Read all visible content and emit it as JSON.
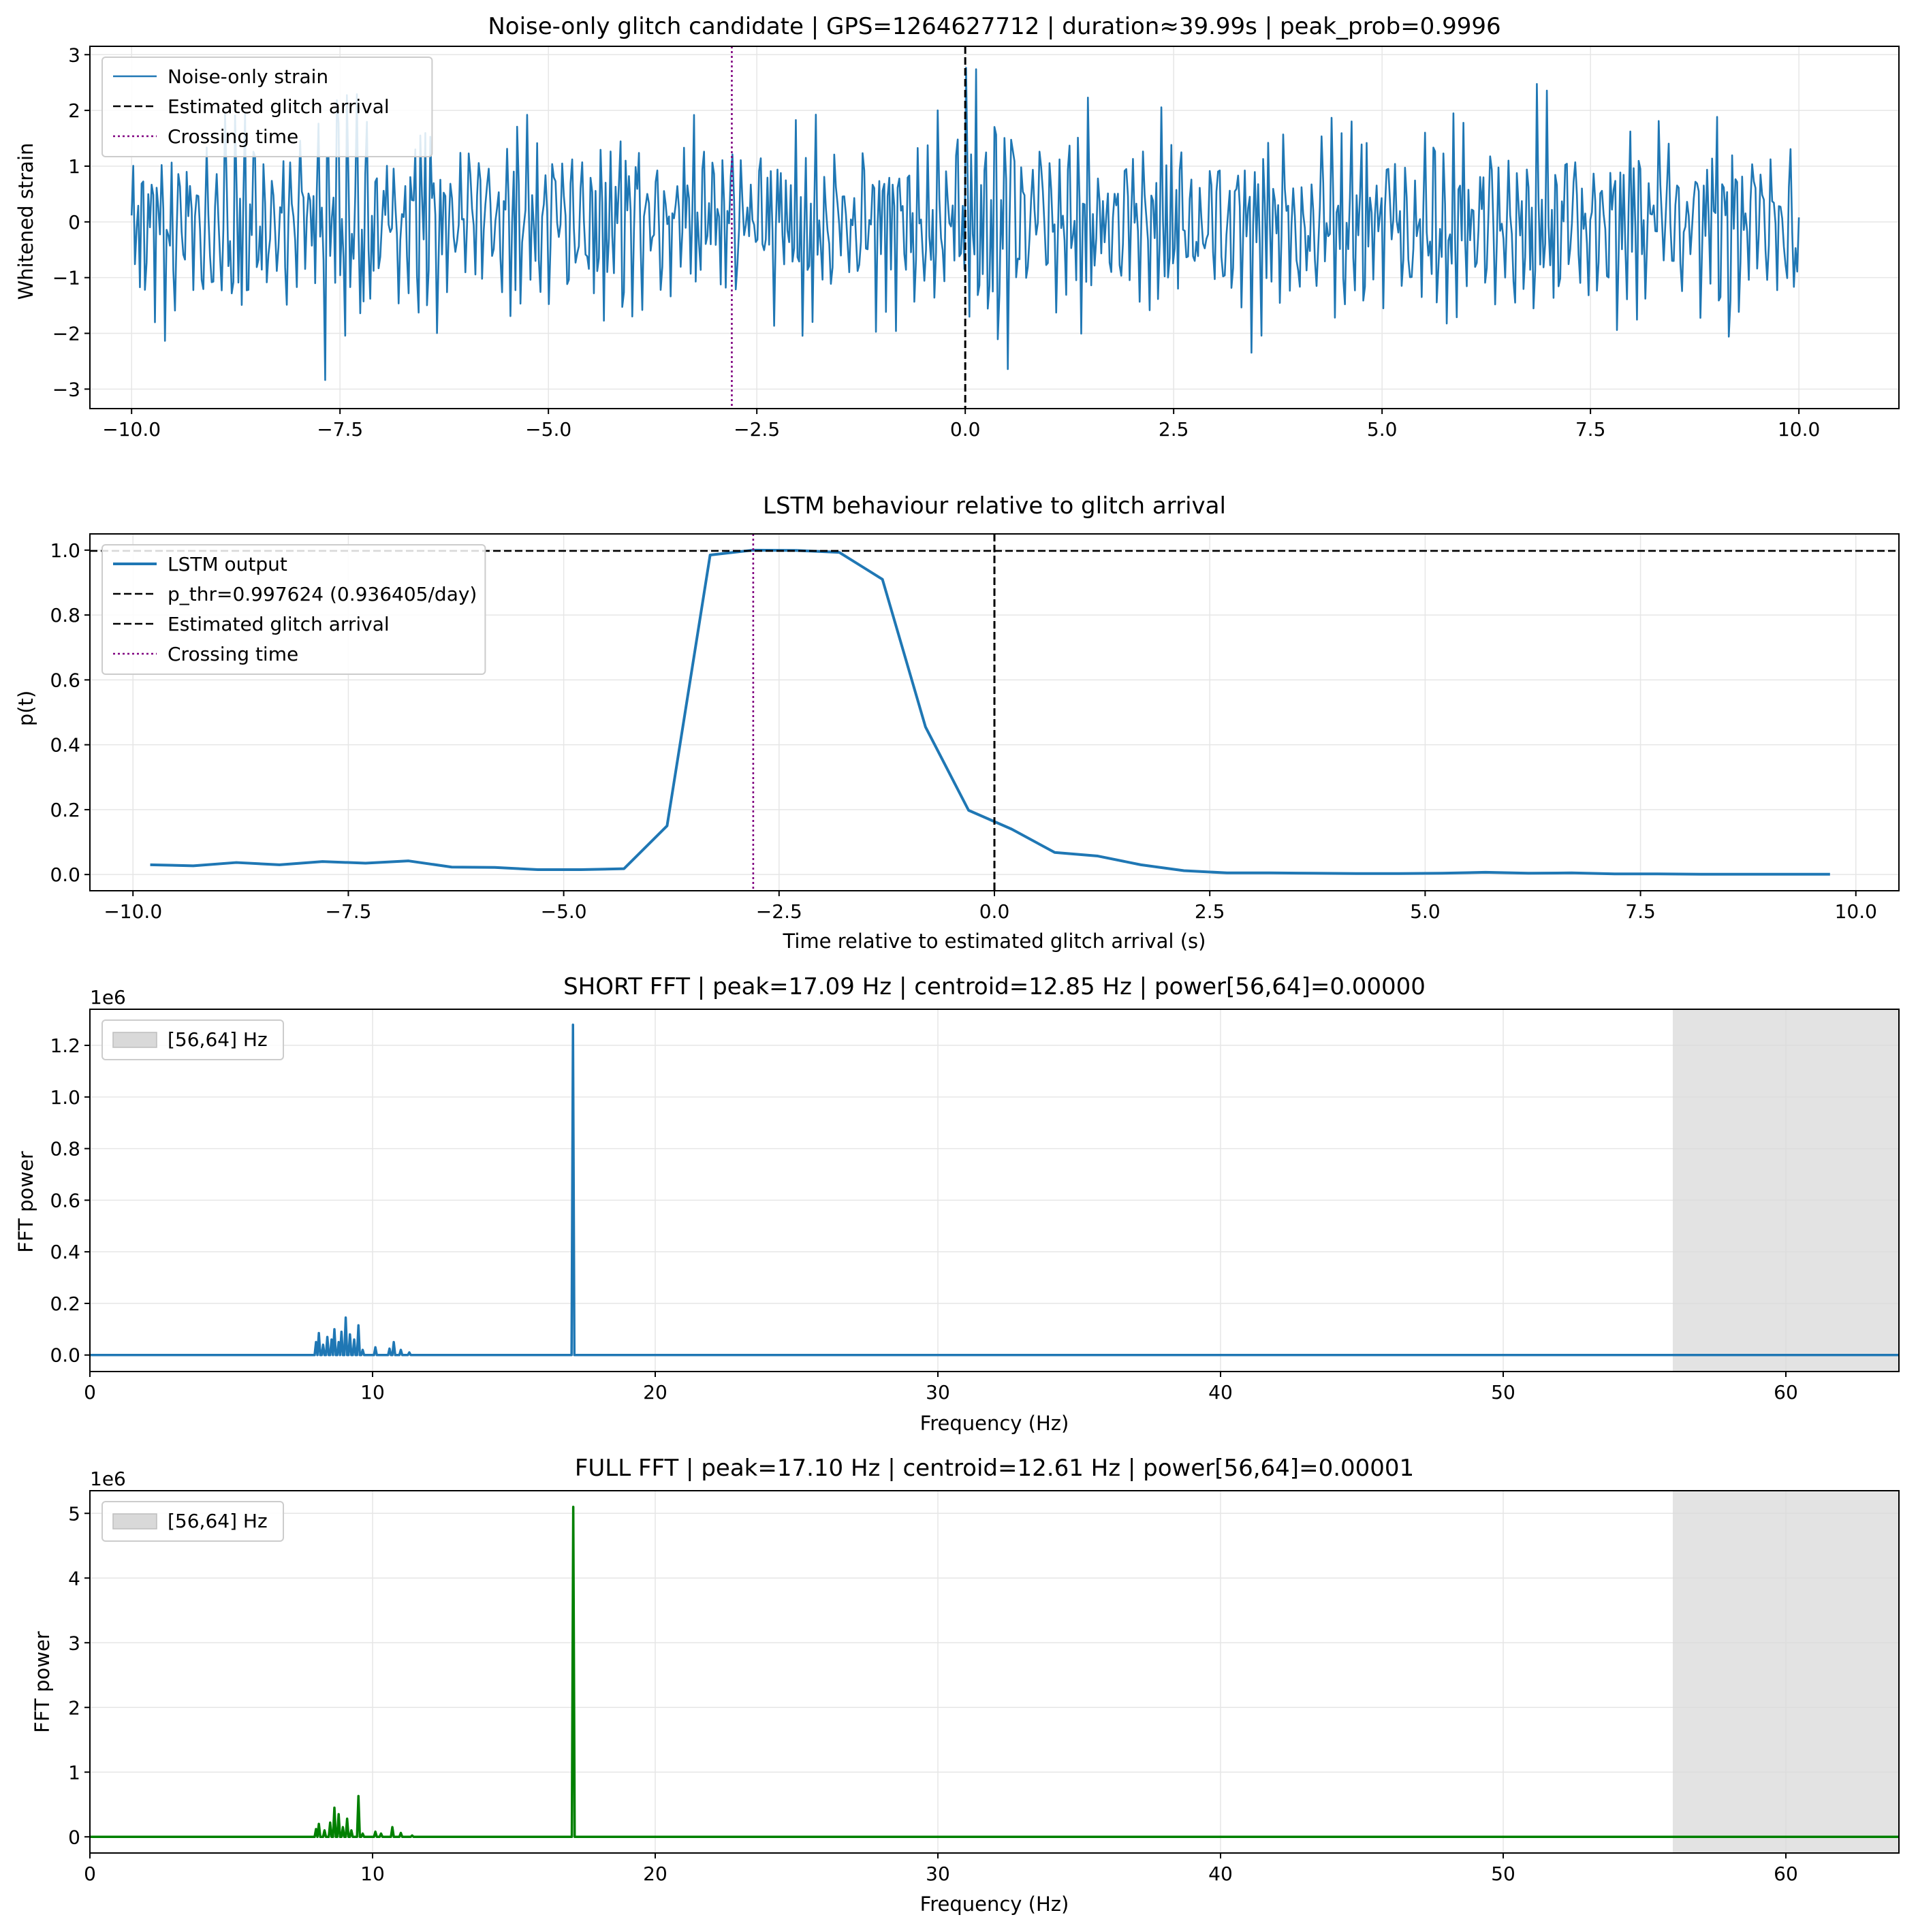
{
  "colors": {
    "strain": "#1f77b4",
    "lstm": "#1f77b4",
    "short_fft": "#1f77b4",
    "full_fft": "#008000",
    "arrival": "#000000",
    "crossing": "#800080",
    "band": "#d9d9d9",
    "grid": "#e6e6e6"
  },
  "chart_data": [
    {
      "id": "strain",
      "type": "line",
      "title": "Noise-only glitch candidate | GPS=1264627712 | duration≈39.99s | peak_prob=0.9996",
      "xlabel": "",
      "ylabel": "Whitened strain",
      "xlim": [
        -10.5,
        11.2
      ],
      "ylim": [
        -3.35,
        3.15
      ],
      "xticks": [
        -10.0,
        -7.5,
        -5.0,
        -2.5,
        0.0,
        2.5,
        5.0,
        7.5,
        10.0
      ],
      "xtick_labels": [
        "−10.0",
        "−7.5",
        "−5.0",
        "−2.5",
        "0.0",
        "2.5",
        "5.0",
        "7.5",
        "10.0"
      ],
      "yticks": [
        -3,
        -2,
        -1,
        0,
        1,
        2,
        3
      ],
      "ytick_labels": [
        "−3",
        "−2",
        "−1",
        "0",
        "1",
        "2",
        "3"
      ],
      "series": [
        {
          "name": "Noise-only strain",
          "samples": 1000,
          "x_range": [
            -10.0,
            10.0
          ],
          "amplitude_range": [
            -3.1,
            2.8
          ],
          "description_hint": "whitened noise"
        }
      ],
      "vlines": [
        {
          "name": "Estimated glitch arrival",
          "x": 0.0,
          "style": "dashed"
        },
        {
          "name": "Crossing time",
          "x": -2.8,
          "style": "dotted"
        }
      ],
      "legend": [
        "Noise-only strain",
        "Estimated glitch arrival",
        "Crossing time"
      ],
      "legend_loc": "upper left"
    },
    {
      "id": "lstm",
      "type": "line",
      "title": "LSTM behaviour relative to glitch arrival",
      "xlabel": "Time relative to estimated glitch arrival (s)",
      "ylabel": "p(t)",
      "xlim": [
        -10.5,
        10.5
      ],
      "ylim": [
        -0.05,
        1.05
      ],
      "xticks": [
        -10.0,
        -7.5,
        -5.0,
        -2.5,
        0.0,
        2.5,
        5.0,
        7.5,
        10.0
      ],
      "xtick_labels": [
        "−10.0",
        "−7.5",
        "−5.0",
        "−2.5",
        "0.0",
        "2.5",
        "5.0",
        "7.5",
        "10.0"
      ],
      "yticks": [
        0.0,
        0.2,
        0.4,
        0.6,
        0.8,
        1.0
      ],
      "ytick_labels": [
        "0.0",
        "0.2",
        "0.4",
        "0.6",
        "0.8",
        "1.0"
      ],
      "series": [
        {
          "name": "LSTM output",
          "x": [
            -9.8,
            -9.3,
            -8.8,
            -8.3,
            -7.8,
            -7.3,
            -6.8,
            -6.3,
            -5.8,
            -5.3,
            -4.8,
            -4.3,
            -3.8,
            -3.3,
            -2.8,
            -2.3,
            -1.8,
            -1.3,
            -0.8,
            -0.3,
            0.2,
            0.7,
            1.2,
            1.7,
            2.2,
            2.7,
            3.2,
            3.7,
            4.2,
            4.7,
            5.2,
            5.7,
            6.2,
            6.7,
            7.2,
            7.7,
            8.2,
            8.7,
            9.2,
            9.7
          ],
          "y": [
            0.03,
            0.027,
            0.037,
            0.03,
            0.04,
            0.035,
            0.042,
            0.023,
            0.022,
            0.015,
            0.015,
            0.018,
            0.15,
            0.985,
            1.0,
            0.999,
            0.993,
            0.91,
            0.455,
            0.198,
            0.14,
            0.068,
            0.057,
            0.03,
            0.012,
            0.005,
            0.005,
            0.004,
            0.003,
            0.003,
            0.004,
            0.007,
            0.004,
            0.005,
            0.002,
            0.002,
            0.001,
            0.001,
            0.001,
            0.001
          ]
        }
      ],
      "hlines": [
        {
          "name": "p_thr=0.997624 (0.936405/day)",
          "y": 0.997624,
          "style": "dashed"
        }
      ],
      "vlines": [
        {
          "name": "Estimated glitch arrival",
          "x": 0.0,
          "style": "dashed"
        },
        {
          "name": "Crossing time",
          "x": -2.8,
          "style": "dotted"
        }
      ],
      "legend": [
        "LSTM output",
        "p_thr=0.997624 (0.936405/day)",
        "Estimated glitch arrival",
        "Crossing time"
      ],
      "legend_loc": "upper left"
    },
    {
      "id": "short_fft",
      "type": "line",
      "title": "SHORT FFT | peak=17.09 Hz | centroid=12.85 Hz | power[56,64]=0.00000",
      "xlabel": "Frequency (Hz)",
      "ylabel": "FFT power",
      "offset_text": "1e6",
      "xlim": [
        0,
        64
      ],
      "ylim": [
        -0.064,
        1.34
      ],
      "xticks": [
        0,
        10,
        20,
        30,
        40,
        50,
        60
      ],
      "xtick_labels": [
        "0",
        "10",
        "20",
        "30",
        "40",
        "50",
        "60"
      ],
      "yticks": [
        0.0,
        0.2,
        0.4,
        0.6,
        0.8,
        1.0,
        1.2
      ],
      "ytick_labels": [
        "0.0",
        "0.2",
        "0.4",
        "0.6",
        "0.8",
        "1.0",
        "1.2"
      ],
      "band": {
        "name": "[56,64] Hz",
        "x0": 56,
        "x1": 64
      },
      "peaks": [
        {
          "f": 8.0,
          "p": 0.05
        },
        {
          "f": 8.1,
          "p": 0.085
        },
        {
          "f": 8.25,
          "p": 0.04
        },
        {
          "f": 8.4,
          "p": 0.07
        },
        {
          "f": 8.55,
          "p": 0.06
        },
        {
          "f": 8.65,
          "p": 0.1
        },
        {
          "f": 8.8,
          "p": 0.05
        },
        {
          "f": 8.9,
          "p": 0.09
        },
        {
          "f": 9.05,
          "p": 0.145
        },
        {
          "f": 9.2,
          "p": 0.08
        },
        {
          "f": 9.35,
          "p": 0.06
        },
        {
          "f": 9.5,
          "p": 0.115
        },
        {
          "f": 9.65,
          "p": 0.02
        },
        {
          "f": 10.1,
          "p": 0.03
        },
        {
          "f": 10.6,
          "p": 0.025
        },
        {
          "f": 10.75,
          "p": 0.05
        },
        {
          "f": 11.0,
          "p": 0.02
        },
        {
          "f": 11.3,
          "p": 0.01
        },
        {
          "f": 17.09,
          "p": 1.28
        }
      ],
      "legend": [
        "[56,64] Hz"
      ],
      "legend_loc": "upper left"
    },
    {
      "id": "full_fft",
      "type": "line",
      "title": "FULL FFT | peak=17.10 Hz | centroid=12.61 Hz | power[56,64]=0.00001",
      "xlabel": "Frequency (Hz)",
      "ylabel": "FFT power",
      "offset_text": "1e6",
      "xlim": [
        0,
        64
      ],
      "ylim": [
        -0.25,
        5.35
      ],
      "xticks": [
        0,
        10,
        20,
        30,
        40,
        50,
        60
      ],
      "xtick_labels": [
        "0",
        "10",
        "20",
        "30",
        "40",
        "50",
        "60"
      ],
      "yticks": [
        0,
        1,
        2,
        3,
        4,
        5
      ],
      "ytick_labels": [
        "0",
        "1",
        "2",
        "3",
        "4",
        "5"
      ],
      "band": {
        "name": "[56,64] Hz",
        "x0": 56,
        "x1": 64
      },
      "peaks": [
        {
          "f": 8.0,
          "p": 0.12
        },
        {
          "f": 8.1,
          "p": 0.2
        },
        {
          "f": 8.3,
          "p": 0.1
        },
        {
          "f": 8.5,
          "p": 0.22
        },
        {
          "f": 8.65,
          "p": 0.45
        },
        {
          "f": 8.8,
          "p": 0.35
        },
        {
          "f": 8.95,
          "p": 0.15
        },
        {
          "f": 9.1,
          "p": 0.28
        },
        {
          "f": 9.25,
          "p": 0.1
        },
        {
          "f": 9.5,
          "p": 0.63
        },
        {
          "f": 9.65,
          "p": 0.05
        },
        {
          "f": 10.1,
          "p": 0.08
        },
        {
          "f": 10.3,
          "p": 0.05
        },
        {
          "f": 10.7,
          "p": 0.15
        },
        {
          "f": 11.0,
          "p": 0.06
        },
        {
          "f": 11.4,
          "p": 0.02
        },
        {
          "f": 17.1,
          "p": 5.1
        }
      ],
      "legend": [
        "[56,64] Hz"
      ],
      "legend_loc": "upper left"
    }
  ]
}
